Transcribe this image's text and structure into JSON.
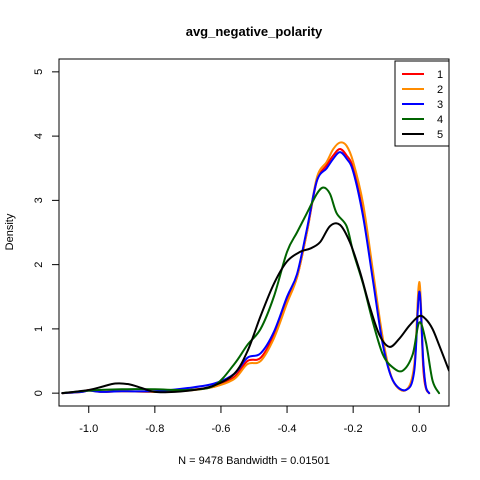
{
  "chart_data": {
    "type": "line",
    "title": "avg_negative_polarity",
    "xlabel": "N = 9478   Bandwidth = 0.01501",
    "ylabel": "Density",
    "xlim": [
      -1.09,
      0.09
    ],
    "ylim": [
      -0.2,
      5.2
    ],
    "x_ticks": [
      -1.0,
      -0.8,
      -0.6,
      -0.4,
      -0.2,
      0.0
    ],
    "x_tick_labels": [
      "-1.0",
      "-0.8",
      "-0.6",
      "-0.4",
      "-0.2",
      "0.0"
    ],
    "y_ticks": [
      0,
      1,
      2,
      3,
      4,
      5
    ],
    "y_tick_labels": [
      "0",
      "1",
      "2",
      "3",
      "4",
      "5"
    ],
    "legend": {
      "position": "top-right",
      "entries": [
        "1",
        "2",
        "3",
        "4",
        "5"
      ]
    },
    "series": [
      {
        "name": "1",
        "color": "#ff0000",
        "points": [
          [
            -1.08,
            0
          ],
          [
            -1.02,
            0.02
          ],
          [
            -1.0,
            0.05
          ],
          [
            -0.96,
            0.02
          ],
          [
            -0.9,
            0.03
          ],
          [
            -0.8,
            0.02
          ],
          [
            -0.7,
            0.05
          ],
          [
            -0.62,
            0.1
          ],
          [
            -0.56,
            0.25
          ],
          [
            -0.52,
            0.5
          ],
          [
            -0.48,
            0.55
          ],
          [
            -0.44,
            0.9
          ],
          [
            -0.4,
            1.45
          ],
          [
            -0.37,
            1.8
          ],
          [
            -0.34,
            2.5
          ],
          [
            -0.31,
            3.3
          ],
          [
            -0.28,
            3.55
          ],
          [
            -0.26,
            3.7
          ],
          [
            -0.24,
            3.8
          ],
          [
            -0.22,
            3.7
          ],
          [
            -0.2,
            3.5
          ],
          [
            -0.17,
            2.8
          ],
          [
            -0.14,
            1.8
          ],
          [
            -0.11,
            0.8
          ],
          [
            -0.08,
            0.2
          ],
          [
            -0.04,
            0.05
          ],
          [
            -0.015,
            0.4
          ],
          [
            0.0,
            1.62
          ],
          [
            0.012,
            0.4
          ],
          [
            0.02,
            0.08
          ],
          [
            0.03,
            0.0
          ]
        ]
      },
      {
        "name": "2",
        "color": "#ff8c00",
        "points": [
          [
            -1.08,
            0
          ],
          [
            -1.02,
            0.02
          ],
          [
            -1.0,
            0.04
          ],
          [
            -0.96,
            0.02
          ],
          [
            -0.9,
            0.03
          ],
          [
            -0.8,
            0.02
          ],
          [
            -0.7,
            0.04
          ],
          [
            -0.62,
            0.1
          ],
          [
            -0.56,
            0.22
          ],
          [
            -0.52,
            0.45
          ],
          [
            -0.48,
            0.5
          ],
          [
            -0.44,
            0.85
          ],
          [
            -0.4,
            1.4
          ],
          [
            -0.37,
            1.8
          ],
          [
            -0.34,
            2.5
          ],
          [
            -0.31,
            3.35
          ],
          [
            -0.28,
            3.6
          ],
          [
            -0.26,
            3.8
          ],
          [
            -0.24,
            3.9
          ],
          [
            -0.22,
            3.85
          ],
          [
            -0.2,
            3.6
          ],
          [
            -0.17,
            2.95
          ],
          [
            -0.14,
            1.9
          ],
          [
            -0.11,
            0.85
          ],
          [
            -0.08,
            0.2
          ],
          [
            -0.04,
            0.05
          ],
          [
            -0.015,
            0.45
          ],
          [
            0.0,
            1.73
          ],
          [
            0.012,
            0.5
          ],
          [
            0.02,
            0.1
          ],
          [
            0.03,
            0.0
          ]
        ]
      },
      {
        "name": "3",
        "color": "#0000ff",
        "points": [
          [
            -1.08,
            0
          ],
          [
            -1.02,
            0.02
          ],
          [
            -1.0,
            0.04
          ],
          [
            -0.96,
            0.02
          ],
          [
            -0.9,
            0.03
          ],
          [
            -0.8,
            0.03
          ],
          [
            -0.7,
            0.08
          ],
          [
            -0.62,
            0.15
          ],
          [
            -0.56,
            0.3
          ],
          [
            -0.52,
            0.55
          ],
          [
            -0.48,
            0.62
          ],
          [
            -0.44,
            0.95
          ],
          [
            -0.4,
            1.5
          ],
          [
            -0.37,
            1.85
          ],
          [
            -0.34,
            2.55
          ],
          [
            -0.31,
            3.3
          ],
          [
            -0.28,
            3.5
          ],
          [
            -0.26,
            3.65
          ],
          [
            -0.24,
            3.75
          ],
          [
            -0.22,
            3.65
          ],
          [
            -0.2,
            3.45
          ],
          [
            -0.17,
            2.75
          ],
          [
            -0.14,
            1.75
          ],
          [
            -0.11,
            0.75
          ],
          [
            -0.08,
            0.2
          ],
          [
            -0.04,
            0.05
          ],
          [
            -0.015,
            0.35
          ],
          [
            0.0,
            1.58
          ],
          [
            0.012,
            0.5
          ],
          [
            0.02,
            0.1
          ],
          [
            0.03,
            0.0
          ]
        ]
      },
      {
        "name": "4",
        "color": "#006400",
        "points": [
          [
            -1.08,
            0
          ],
          [
            -1.0,
            0.04
          ],
          [
            -0.9,
            0.06
          ],
          [
            -0.8,
            0.06
          ],
          [
            -0.7,
            0.05
          ],
          [
            -0.62,
            0.12
          ],
          [
            -0.56,
            0.45
          ],
          [
            -0.52,
            0.75
          ],
          [
            -0.48,
            1.0
          ],
          [
            -0.44,
            1.5
          ],
          [
            -0.4,
            2.2
          ],
          [
            -0.37,
            2.5
          ],
          [
            -0.34,
            2.8
          ],
          [
            -0.31,
            3.1
          ],
          [
            -0.29,
            3.2
          ],
          [
            -0.27,
            3.1
          ],
          [
            -0.25,
            2.8
          ],
          [
            -0.22,
            2.6
          ],
          [
            -0.2,
            2.2
          ],
          [
            -0.17,
            1.7
          ],
          [
            -0.14,
            1.1
          ],
          [
            -0.11,
            0.6
          ],
          [
            -0.08,
            0.4
          ],
          [
            -0.05,
            0.35
          ],
          [
            -0.02,
            0.6
          ],
          [
            0.0,
            1.1
          ],
          [
            0.02,
            0.8
          ],
          [
            0.04,
            0.2
          ],
          [
            0.06,
            0.0
          ]
        ]
      },
      {
        "name": "5",
        "color": "#000000",
        "points": [
          [
            -1.08,
            0
          ],
          [
            -1.0,
            0.05
          ],
          [
            -0.96,
            0.1
          ],
          [
            -0.92,
            0.15
          ],
          [
            -0.88,
            0.14
          ],
          [
            -0.84,
            0.08
          ],
          [
            -0.8,
            0.02
          ],
          [
            -0.74,
            0.02
          ],
          [
            -0.68,
            0.05
          ],
          [
            -0.62,
            0.12
          ],
          [
            -0.56,
            0.3
          ],
          [
            -0.52,
            0.65
          ],
          [
            -0.48,
            1.2
          ],
          [
            -0.44,
            1.7
          ],
          [
            -0.4,
            2.05
          ],
          [
            -0.36,
            2.2
          ],
          [
            -0.33,
            2.25
          ],
          [
            -0.3,
            2.35
          ],
          [
            -0.27,
            2.6
          ],
          [
            -0.24,
            2.62
          ],
          [
            -0.21,
            2.35
          ],
          [
            -0.18,
            1.9
          ],
          [
            -0.15,
            1.35
          ],
          [
            -0.12,
            0.9
          ],
          [
            -0.09,
            0.72
          ],
          [
            -0.06,
            0.85
          ],
          [
            -0.03,
            1.05
          ],
          [
            0.0,
            1.2
          ],
          [
            0.02,
            1.15
          ],
          [
            0.04,
            1.0
          ],
          [
            0.06,
            0.75
          ],
          [
            0.09,
            0.35
          ]
        ]
      }
    ]
  }
}
